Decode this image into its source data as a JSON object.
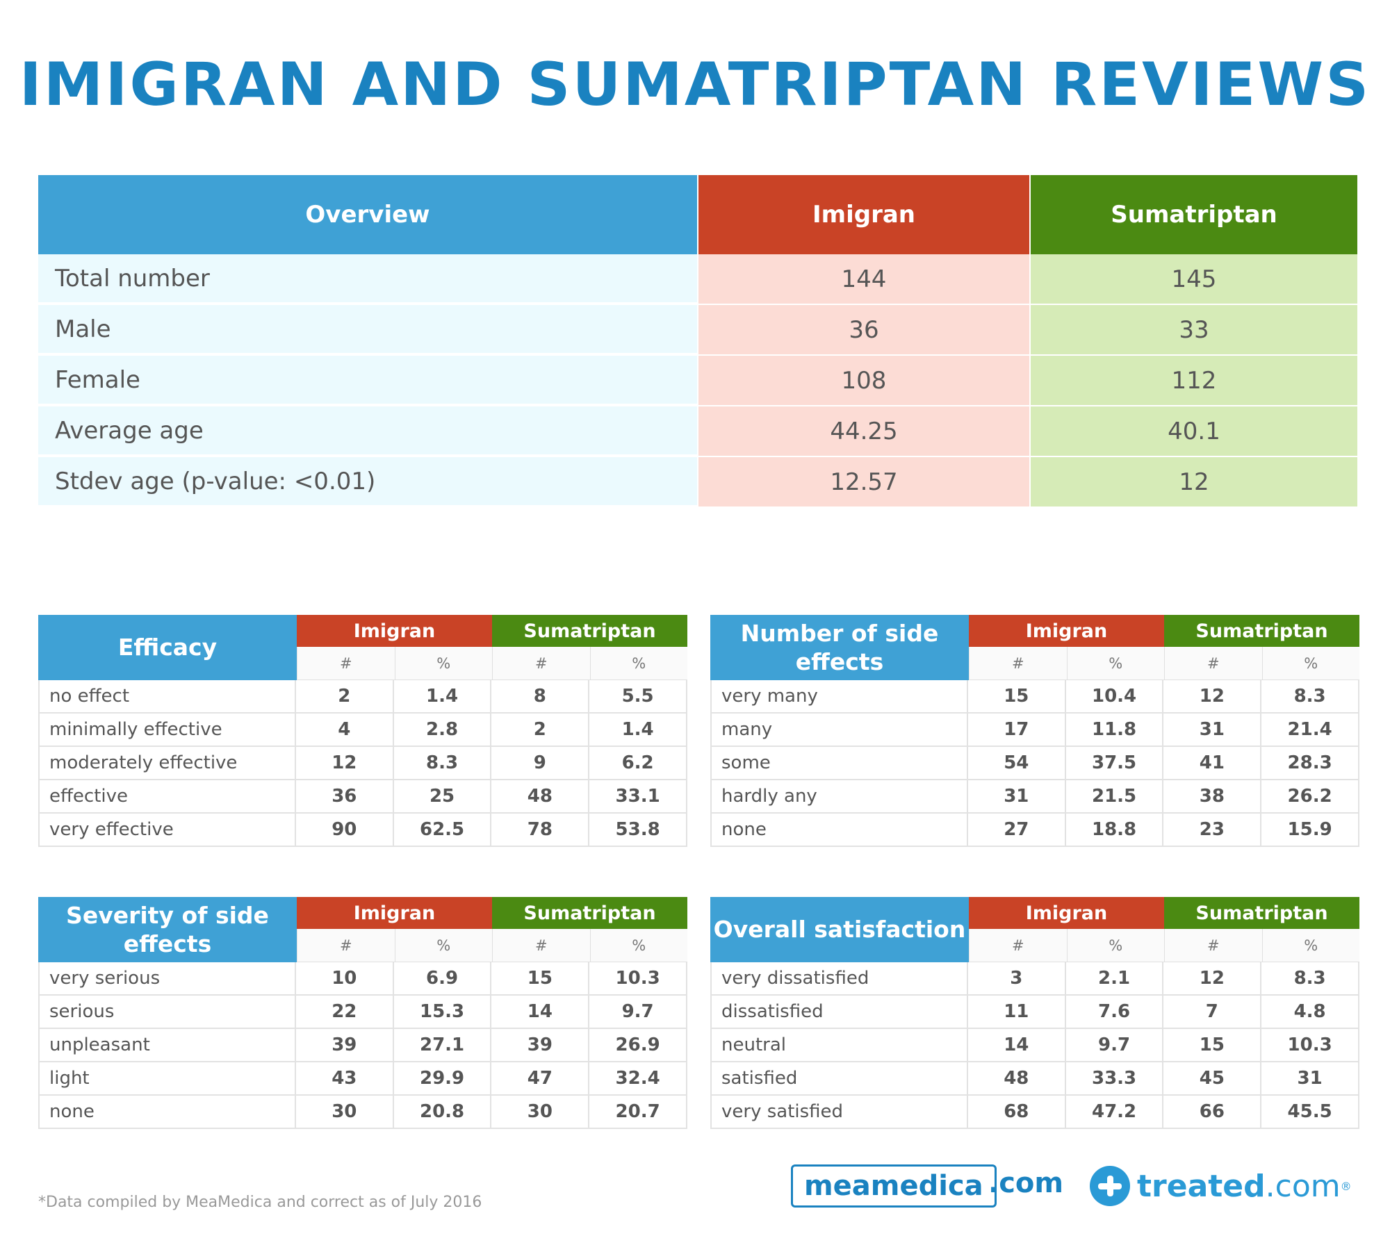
{
  "title": "IMIGRAN AND SUMATRIPTAN REVIEWS",
  "overview": {
    "headers": [
      "Overview",
      "Imigran",
      "Sumatriptan"
    ],
    "rows": [
      {
        "label": "Total number",
        "imigran": "144",
        "sumatriptan": "145"
      },
      {
        "label": "Male",
        "imigran": "36",
        "sumatriptan": "33"
      },
      {
        "label": "Female",
        "imigran": "108",
        "sumatriptan": "112"
      },
      {
        "label": "Average age",
        "imigran": "44.25",
        "sumatriptan": "40.1"
      },
      {
        "label": "Stdev age (p-value: <0.01)",
        "imigran": "12.57",
        "sumatriptan": "12"
      }
    ]
  },
  "tables": [
    {
      "title": "Efficacy",
      "groups": [
        "Imigran",
        "Sumatriptan"
      ],
      "subheaders": [
        "#",
        "%",
        "#",
        "%"
      ],
      "rows": [
        {
          "label": "no effect",
          "values": [
            "2",
            "1.4",
            "8",
            "5.5"
          ]
        },
        {
          "label": "minimally effective",
          "values": [
            "4",
            "2.8",
            "2",
            "1.4"
          ]
        },
        {
          "label": "moderately effective",
          "values": [
            "12",
            "8.3",
            "9",
            "6.2"
          ]
        },
        {
          "label": "effective",
          "values": [
            "36",
            "25",
            "48",
            "33.1"
          ]
        },
        {
          "label": "very effective",
          "values": [
            "90",
            "62.5",
            "78",
            "53.8"
          ]
        }
      ]
    },
    {
      "title": "Number of side effects",
      "groups": [
        "Imigran",
        "Sumatriptan"
      ],
      "subheaders": [
        "#",
        "%",
        "#",
        "%"
      ],
      "rows": [
        {
          "label": "very many",
          "values": [
            "15",
            "10.4",
            "12",
            "8.3"
          ]
        },
        {
          "label": "many",
          "values": [
            "17",
            "11.8",
            "31",
            "21.4"
          ]
        },
        {
          "label": "some",
          "values": [
            "54",
            "37.5",
            "41",
            "28.3"
          ]
        },
        {
          "label": "hardly any",
          "values": [
            "31",
            "21.5",
            "38",
            "26.2"
          ]
        },
        {
          "label": "none",
          "values": [
            "27",
            "18.8",
            "23",
            "15.9"
          ]
        }
      ]
    },
    {
      "title": "Severity of side effects",
      "groups": [
        "Imigran",
        "Sumatriptan"
      ],
      "subheaders": [
        "#",
        "%",
        "#",
        "%"
      ],
      "rows": [
        {
          "label": "very serious",
          "values": [
            "10",
            "6.9",
            "15",
            "10.3"
          ]
        },
        {
          "label": "serious",
          "values": [
            "22",
            "15.3",
            "14",
            "9.7"
          ]
        },
        {
          "label": "unpleasant",
          "values": [
            "39",
            "27.1",
            "39",
            "26.9"
          ]
        },
        {
          "label": "light",
          "values": [
            "43",
            "29.9",
            "47",
            "32.4"
          ]
        },
        {
          "label": "none",
          "values": [
            "30",
            "20.8",
            "30",
            "20.7"
          ]
        }
      ]
    },
    {
      "title": "Overall satisfaction",
      "groups": [
        "Imigran",
        "Sumatriptan"
      ],
      "subheaders": [
        "#",
        "%",
        "#",
        "%"
      ],
      "rows": [
        {
          "label": "very dissatisfied",
          "values": [
            "3",
            "2.1",
            "12",
            "8.3"
          ]
        },
        {
          "label": "dissatisfied",
          "values": [
            "11",
            "7.6",
            "7",
            "4.8"
          ]
        },
        {
          "label": "neutral",
          "values": [
            "14",
            "9.7",
            "15",
            "10.3"
          ]
        },
        {
          "label": "satisfied",
          "values": [
            "48",
            "33.3",
            "45",
            "31"
          ]
        },
        {
          "label": "very satisfied",
          "values": [
            "68",
            "47.2",
            "66",
            "45.5"
          ]
        }
      ]
    }
  ],
  "footnote": "*Data compiled by MeaMedica and correct as of July 2016",
  "logos": {
    "meamedica": "meamedica",
    "meamedica_suffix": ".com",
    "treated": "treated",
    "treated_suffix": ".com",
    "treated_mark": "®",
    "treated_icon": "cross-circle-icon"
  },
  "colors": {
    "title": "#1a82c0",
    "header_blue": "#3fa1d5",
    "imigran_red": "#c94326",
    "sumatriptan_green": "#4b8a12",
    "row_blue": "#ebfafe",
    "row_pink": "#fcdcd5",
    "row_green": "#d6ebb7"
  }
}
